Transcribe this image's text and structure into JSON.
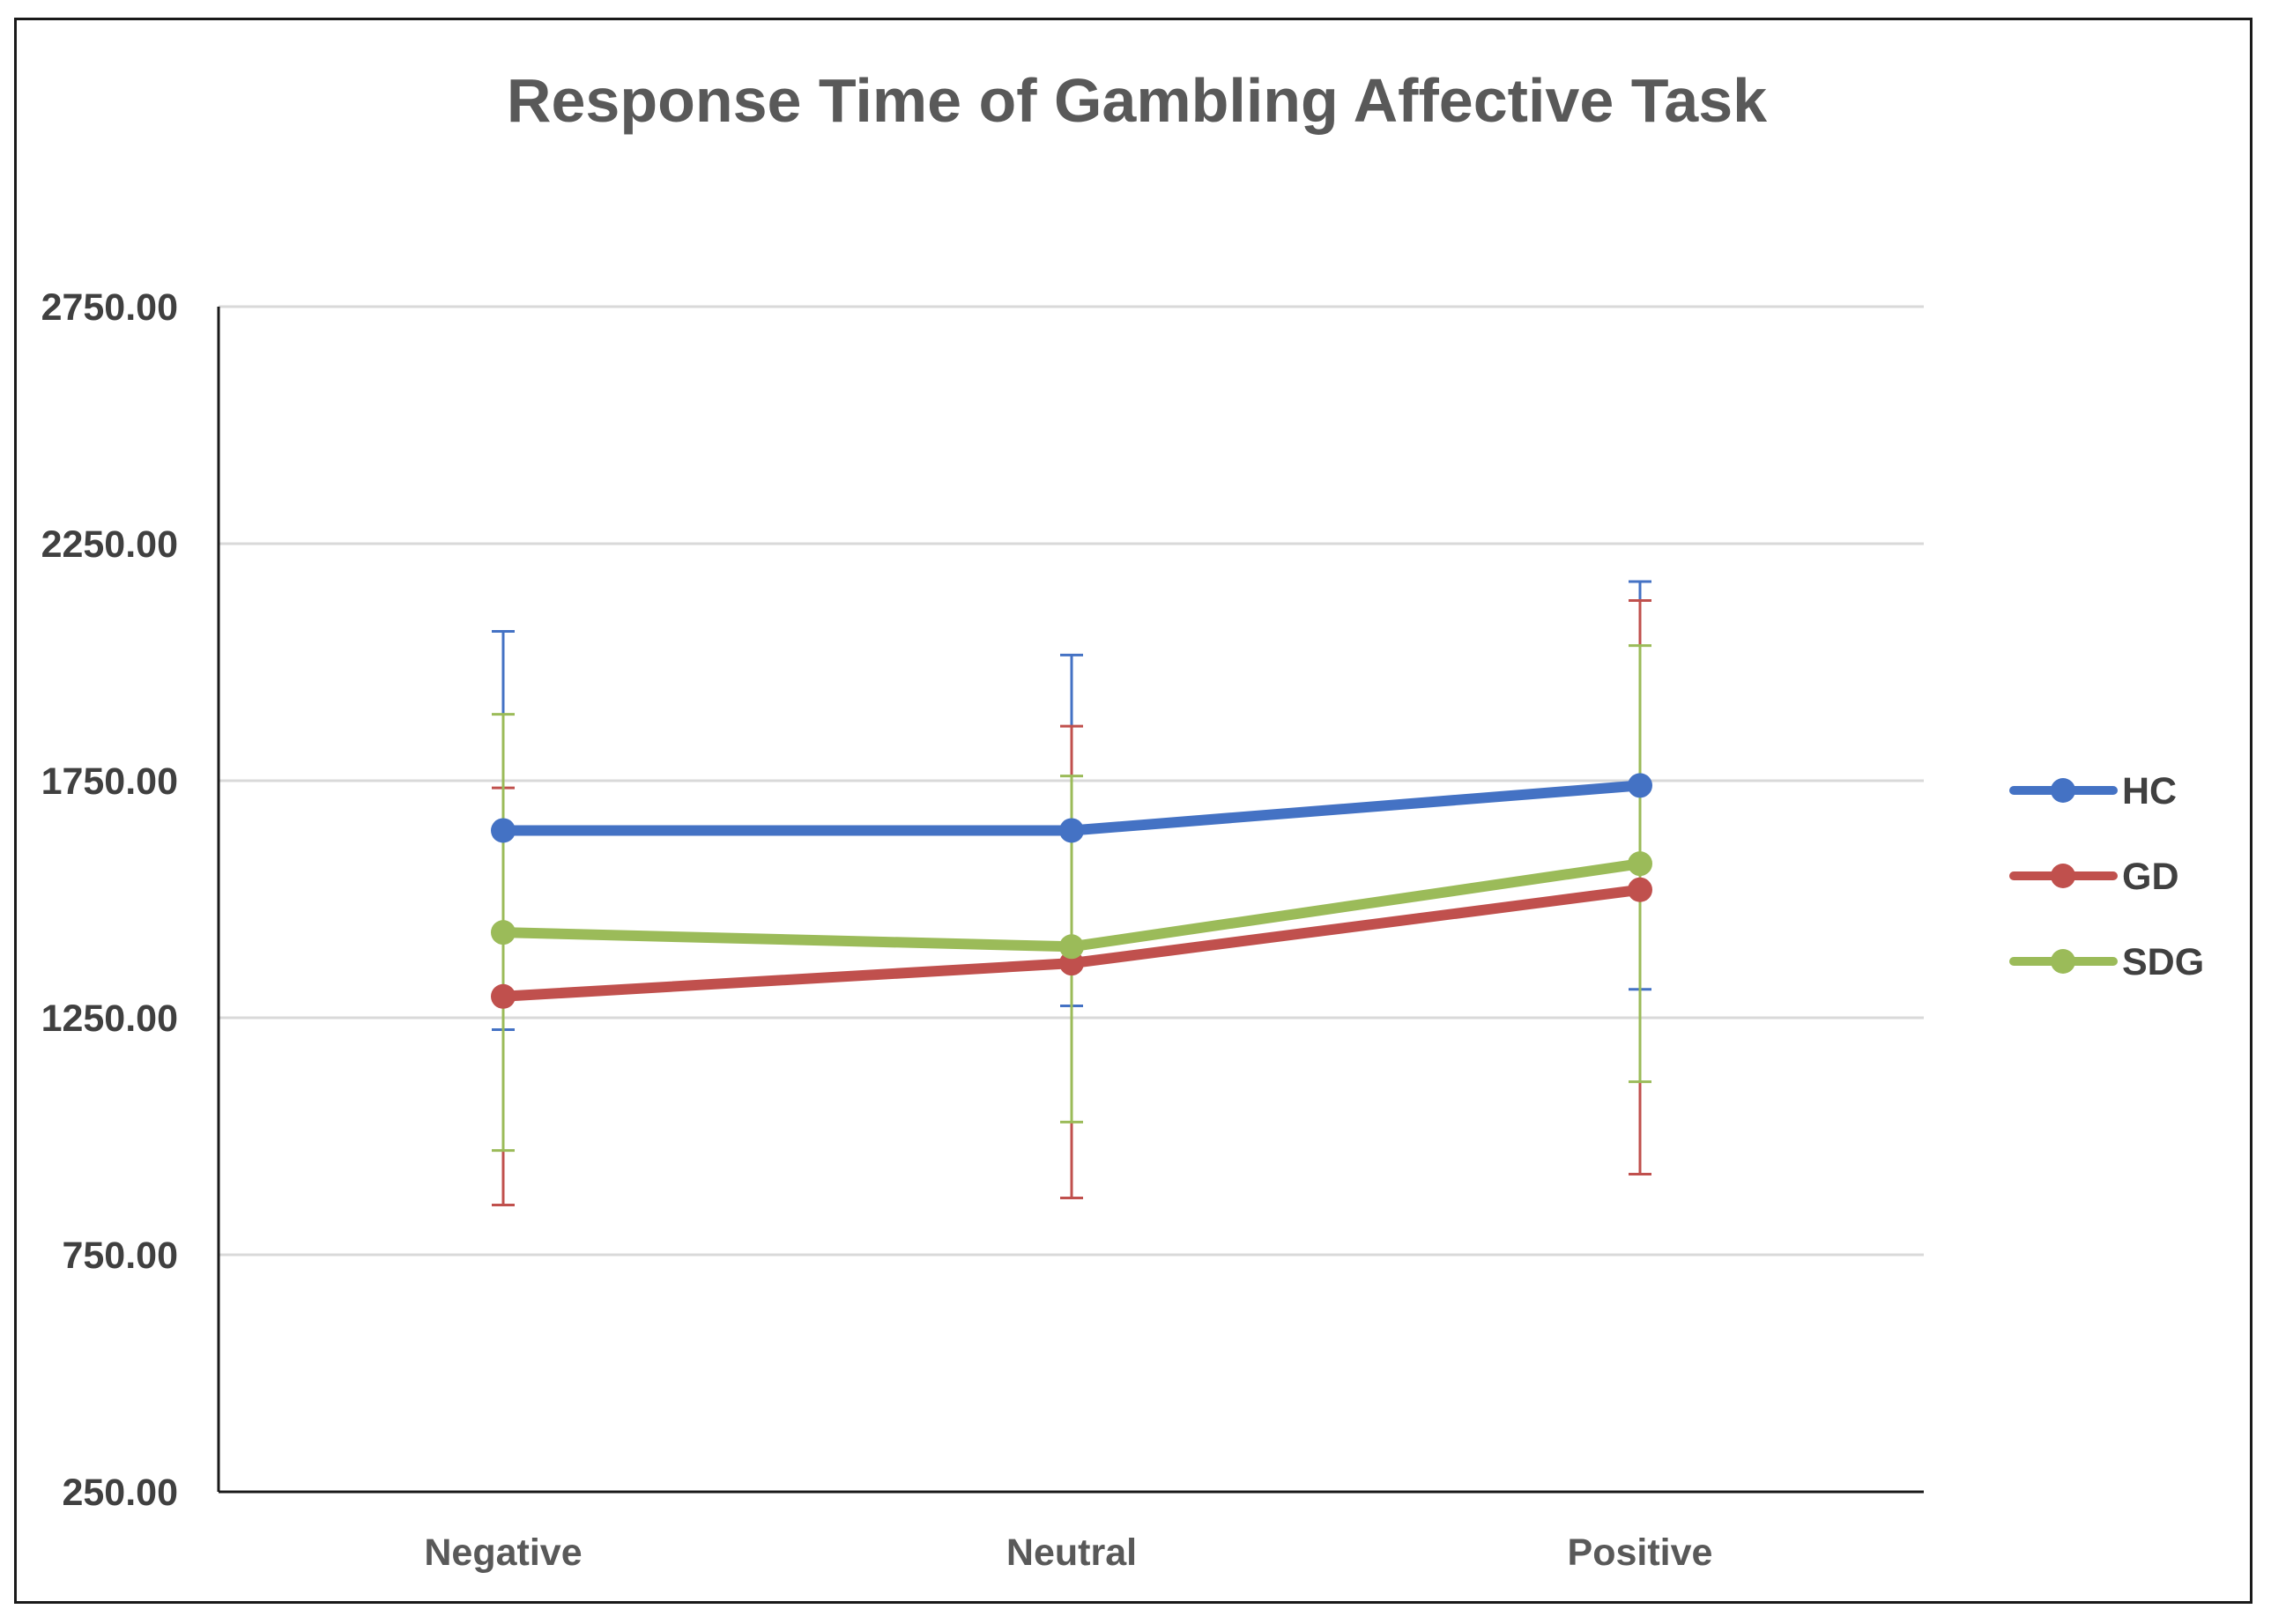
{
  "chart_data": {
    "type": "line",
    "title": "Response Time of Gambling Affective Task",
    "xlabel": "",
    "ylabel": "",
    "categories": [
      "Negative",
      "Neutral",
      "Positive"
    ],
    "ylim": [
      250,
      2750
    ],
    "yticks": [
      250,
      750,
      1250,
      1750,
      2250,
      2750
    ],
    "ytick_labels": [
      "250.00",
      "750.00",
      "1250.00",
      "1750.00",
      "2250.00",
      "2750.00"
    ],
    "grid": true,
    "legend_position": "right",
    "series": [
      {
        "name": "HC",
        "color": "#4472c4",
        "values": [
          1645,
          1645,
          1740
        ],
        "error_upper": [
          2065,
          2015,
          2170
        ],
        "error_lower": [
          1225,
          1275,
          1310
        ]
      },
      {
        "name": "GD",
        "color": "#c0504d",
        "values": [
          1295,
          1365,
          1520
        ],
        "error_upper": [
          1735,
          1865,
          2130
        ],
        "error_lower": [
          855,
          870,
          920
        ]
      },
      {
        "name": "SDG",
        "color": "#9bbb59",
        "values": [
          1430,
          1400,
          1575
        ],
        "error_upper": [
          1890,
          1760,
          2035
        ],
        "error_lower": [
          970,
          1030,
          1115
        ]
      }
    ]
  }
}
